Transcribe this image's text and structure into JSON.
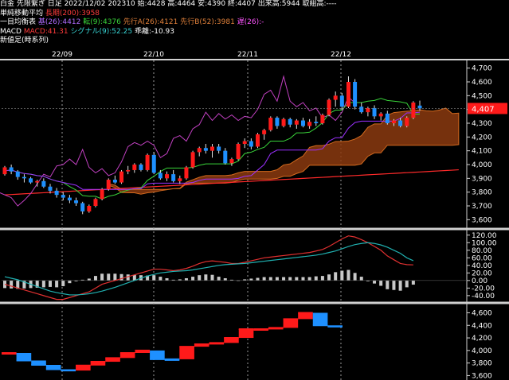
{
  "header": {
    "line1": "白金 先限繋ぎ 日足 2022/12/02 202310 始:4428 高:4464 安:4390 終:4407 出来高:5944 取組高:----",
    "sma_label": "単純移動平均",
    "sma_value": "長期(200):3958",
    "ichimoku_label": "一目均衡表",
    "kijun": "基(26):4412",
    "tenkan": "転(9):4376",
    "senkou_a": "先行A(26):4121",
    "senkou_b": "先行B(52):3981",
    "chikou": "遅(26):-",
    "macd_label": "MACD",
    "macd_value": "MACD:41.31",
    "signal_value": "シグナル(9):52.25",
    "hist_value": "乖離:-10.93",
    "bottom_label": "新値足(時系列)"
  },
  "colors": {
    "up": "#ff1a1a",
    "down": "#1e90ff",
    "cloud": "#8b3a0f",
    "cloud_edge": "#d2691e",
    "tenkan": "#39d43a",
    "kijun": "#9b30ff",
    "chikou": "#c040c0",
    "sma": "#ff2a2a",
    "macd": "#e03030",
    "signal": "#20b0b0",
    "hist": "#c8c8c8",
    "price_tag": "#ff1a1a"
  },
  "chart_data": [
    {
      "type": "candlestick",
      "title": "白金 先限繋ぎ 日足",
      "x_labels": [
        "22/09",
        "22/10",
        "22/11",
        "22/12"
      ],
      "ylim": [
        3550,
        4750
      ],
      "y_ticks": [
        3600,
        3700,
        3800,
        3900,
        4000,
        4100,
        4200,
        4300,
        4400,
        4500,
        4600,
        4700
      ],
      "last_price": 4407,
      "candles": [
        [
          3930,
          3990,
          3920,
          3980
        ],
        [
          3980,
          4000,
          3930,
          3950
        ],
        [
          3950,
          3960,
          3890,
          3910
        ],
        [
          3910,
          3930,
          3870,
          3900
        ],
        [
          3900,
          3910,
          3860,
          3870
        ],
        [
          3870,
          3890,
          3840,
          3880
        ],
        [
          3880,
          3900,
          3830,
          3840
        ],
        [
          3840,
          3860,
          3790,
          3810
        ],
        [
          3810,
          3830,
          3760,
          3780
        ],
        [
          3780,
          3800,
          3740,
          3760
        ],
        [
          3760,
          3780,
          3720,
          3740
        ],
        [
          3740,
          3760,
          3700,
          3720
        ],
        [
          3720,
          3730,
          3640,
          3660
        ],
        [
          3660,
          3710,
          3650,
          3700
        ],
        [
          3700,
          3760,
          3690,
          3750
        ],
        [
          3750,
          3830,
          3740,
          3820
        ],
        [
          3820,
          3900,
          3810,
          3890
        ],
        [
          3890,
          3920,
          3860,
          3870
        ],
        [
          3870,
          3960,
          3860,
          3950
        ],
        [
          3950,
          3990,
          3930,
          3960
        ],
        [
          3960,
          4010,
          3940,
          4000
        ],
        [
          4000,
          4010,
          3950,
          3960
        ],
        [
          3960,
          4080,
          3950,
          4070
        ],
        [
          4070,
          4090,
          3930,
          3940
        ],
        [
          3940,
          3960,
          3890,
          3900
        ],
        [
          3900,
          3950,
          3880,
          3930
        ],
        [
          3930,
          3960,
          3870,
          3880
        ],
        [
          3880,
          3920,
          3860,
          3900
        ],
        [
          3900,
          3990,
          3890,
          3980
        ],
        [
          3980,
          4100,
          3970,
          4090
        ],
        [
          4090,
          4130,
          4060,
          4120
        ],
        [
          4120,
          4150,
          4080,
          4100
        ],
        [
          4100,
          4150,
          4050,
          4130
        ],
        [
          4130,
          4150,
          4080,
          4100
        ],
        [
          4100,
          4120,
          4000,
          4010
        ],
        [
          4010,
          4050,
          3990,
          4040
        ],
        [
          4040,
          4160,
          4030,
          4150
        ],
        [
          4150,
          4190,
          4120,
          4170
        ],
        [
          4170,
          4190,
          4110,
          4130
        ],
        [
          4130,
          4230,
          4120,
          4220
        ],
        [
          4220,
          4260,
          4180,
          4250
        ],
        [
          4250,
          4350,
          4240,
          4340
        ],
        [
          4340,
          4350,
          4260,
          4280
        ],
        [
          4280,
          4340,
          4270,
          4330
        ],
        [
          4330,
          4340,
          4270,
          4290
        ],
        [
          4290,
          4330,
          4260,
          4320
        ],
        [
          4320,
          4340,
          4270,
          4280
        ],
        [
          4280,
          4330,
          4260,
          4310
        ],
        [
          4310,
          4350,
          4280,
          4300
        ],
        [
          4300,
          4370,
          4290,
          4360
        ],
        [
          4360,
          4480,
          4350,
          4470
        ],
        [
          4470,
          4530,
          4420,
          4500
        ],
        [
          4500,
          4520,
          4400,
          4420
        ],
        [
          4420,
          4640,
          4410,
          4600
        ],
        [
          4600,
          4620,
          4400,
          4420
        ],
        [
          4420,
          4450,
          4370,
          4380
        ],
        [
          4380,
          4420,
          4350,
          4410
        ],
        [
          4410,
          4430,
          4330,
          4350
        ],
        [
          4350,
          4380,
          4320,
          4370
        ],
        [
          4370,
          4390,
          4290,
          4300
        ],
        [
          4300,
          4330,
          4280,
          4320
        ],
        [
          4320,
          4340,
          4270,
          4280
        ],
        [
          4280,
          4350,
          4270,
          4340
        ],
        [
          4340,
          4460,
          4330,
          4450
        ],
        [
          4428,
          4464,
          4390,
          4407
        ]
      ]
    },
    {
      "type": "line",
      "title": "MACD",
      "ylim": [
        -55,
        130
      ],
      "y_ticks": [
        -40,
        -20,
        0,
        20,
        40,
        60,
        80,
        100,
        120
      ],
      "series": [
        {
          "name": "MACD",
          "values": [
            -10,
            -15,
            -20,
            -25,
            -30,
            -35,
            -40,
            -45,
            -50,
            -50,
            -45,
            -40,
            -35,
            -30,
            -20,
            -10,
            -5,
            0,
            5,
            10,
            15,
            20,
            25,
            30,
            30,
            28,
            26,
            28,
            32,
            38,
            45,
            50,
            52,
            50,
            48,
            45,
            45,
            48,
            52,
            56,
            60,
            62,
            64,
            66,
            68,
            70,
            72,
            74,
            78,
            82,
            90,
            100,
            110,
            118,
            115,
            108,
            100,
            90,
            80,
            65,
            55,
            45,
            42,
            41.31
          ]
        },
        {
          "name": "シグナル",
          "values": [
            10,
            6,
            2,
            -4,
            -10,
            -16,
            -22,
            -28,
            -32,
            -35,
            -38,
            -38,
            -37,
            -35,
            -32,
            -28,
            -23,
            -18,
            -12,
            -6,
            0,
            6,
            12,
            16,
            20,
            22,
            24,
            25,
            26,
            28,
            31,
            34,
            37,
            40,
            42,
            43,
            44,
            45,
            47,
            49,
            51,
            53,
            55,
            57,
            59,
            61,
            63,
            65,
            67,
            70,
            74,
            78,
            84,
            90,
            95,
            98,
            100,
            98,
            94,
            88,
            80,
            72,
            60,
            52.25
          ]
        }
      ],
      "histogram": [
        -20,
        -21,
        -22,
        -21,
        -20,
        -19,
        -18,
        -17,
        -18,
        -15,
        -7,
        -2,
        2,
        5,
        12,
        18,
        18,
        18,
        17,
        16,
        15,
        14,
        13,
        14,
        10,
        6,
        2,
        3,
        6,
        10,
        14,
        16,
        15,
        10,
        6,
        2,
        1,
        3,
        5,
        7,
        9,
        9,
        9,
        9,
        9,
        9,
        9,
        9,
        11,
        12,
        16,
        22,
        26,
        28,
        20,
        10,
        0,
        -8,
        -14,
        -23,
        -25,
        -27,
        -18,
        -10.93
      ]
    },
    {
      "type": "step",
      "title": "新値足(時系列)",
      "ylim": [
        3580,
        4720
      ],
      "y_ticks": [
        3600,
        3800,
        4000,
        4200,
        4400,
        4600
      ],
      "bars": [
        {
          "from": 3960,
          "to": 3960,
          "dir": "up"
        },
        {
          "from": 3960,
          "to": 3840,
          "dir": "down"
        },
        {
          "from": 3840,
          "to": 3770,
          "dir": "down"
        },
        {
          "from": 3770,
          "to": 3700,
          "dir": "down"
        },
        {
          "from": 3700,
          "to": 3680,
          "dir": "down"
        },
        {
          "from": 3680,
          "to": 3760,
          "dir": "up"
        },
        {
          "from": 3760,
          "to": 3820,
          "dir": "up"
        },
        {
          "from": 3820,
          "to": 3880,
          "dir": "up"
        },
        {
          "from": 3880,
          "to": 3960,
          "dir": "up"
        },
        {
          "from": 3960,
          "to": 4000,
          "dir": "up"
        },
        {
          "from": 4000,
          "to": 3860,
          "dir": "down"
        },
        {
          "from": 3860,
          "to": 3860,
          "dir": "down"
        },
        {
          "from": 3860,
          "to": 4060,
          "dir": "up"
        },
        {
          "from": 4060,
          "to": 4100,
          "dir": "up"
        },
        {
          "from": 4100,
          "to": 4120,
          "dir": "up"
        },
        {
          "from": 4120,
          "to": 4200,
          "dir": "up"
        },
        {
          "from": 4200,
          "to": 4340,
          "dir": "up"
        },
        {
          "from": 4340,
          "to": 4340,
          "dir": "up"
        },
        {
          "from": 4340,
          "to": 4360,
          "dir": "up"
        },
        {
          "from": 4360,
          "to": 4500,
          "dir": "up"
        },
        {
          "from": 4500,
          "to": 4600,
          "dir": "up"
        },
        {
          "from": 4600,
          "to": 4400,
          "dir": "down"
        },
        {
          "from": 4400,
          "to": 4380,
          "dir": "down"
        }
      ]
    }
  ]
}
